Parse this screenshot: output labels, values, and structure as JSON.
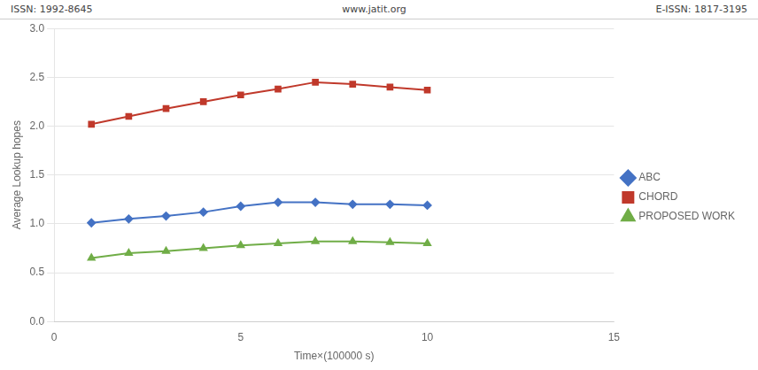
{
  "chart_data": {
    "type": "line",
    "xlabel": "Time×(100000 s)",
    "ylabel": "Average Lookup hopes",
    "annotations": [
      "ISSN: 1992-8645",
      "www.jatit.org",
      "E-ISSN: 1817-3195"
    ],
    "x": [
      1,
      2,
      3,
      4,
      5,
      6,
      7,
      8,
      9,
      10
    ],
    "series": [
      {
        "name": "ABC",
        "color": "#4472c4",
        "marker": "diamond",
        "values": [
          1.01,
          1.05,
          1.08,
          1.12,
          1.18,
          1.22,
          1.22,
          1.2,
          1.2,
          1.19
        ]
      },
      {
        "name": "CHORD",
        "color": "#c0392b",
        "marker": "square",
        "values": [
          2.02,
          2.1,
          2.18,
          2.25,
          2.32,
          2.38,
          2.45,
          2.43,
          2.4,
          2.37
        ]
      },
      {
        "name": "PROPOSED WORK",
        "color": "#70ad47",
        "marker": "triangle",
        "values": [
          0.65,
          0.7,
          0.72,
          0.75,
          0.78,
          0.8,
          0.82,
          0.82,
          0.81,
          0.8
        ]
      }
    ],
    "xlim": [
      0,
      15
    ],
    "xticks": [
      0,
      5,
      10,
      15
    ],
    "ylim": [
      0,
      3
    ],
    "yticks": [
      {
        "value": 0,
        "label": "0.0"
      },
      {
        "value": 0.5,
        "label": "0.5"
      },
      {
        "value": 1,
        "label": "1.0"
      },
      {
        "value": 1.5,
        "label": "1.5"
      },
      {
        "value": 2,
        "label": "2.0"
      },
      {
        "value": 2.5,
        "label": "2.5"
      },
      {
        "value": 3,
        "label": "3.0"
      }
    ],
    "grid": "y",
    "legend": "right"
  }
}
